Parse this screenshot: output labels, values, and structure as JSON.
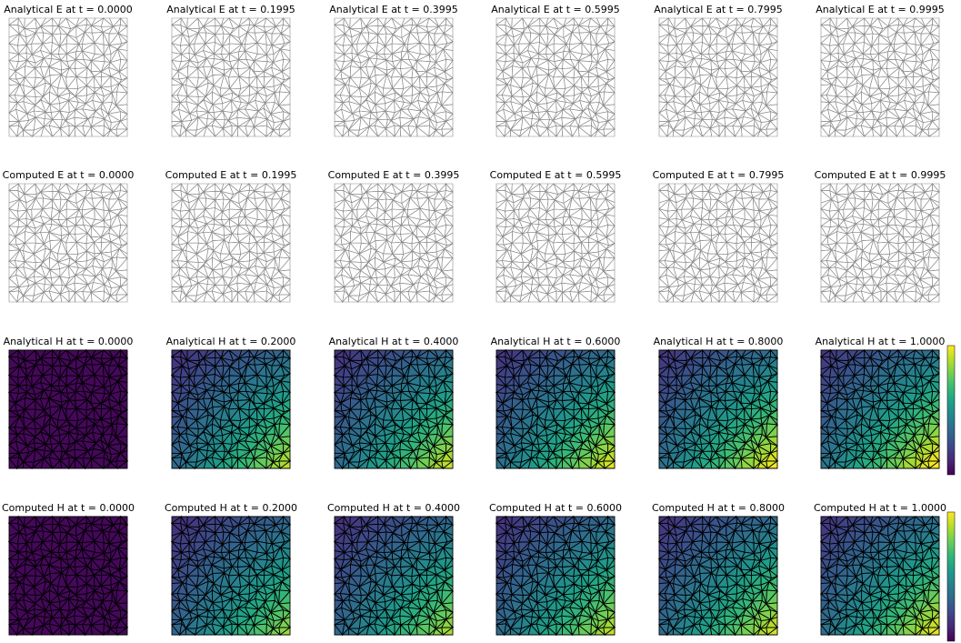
{
  "rows": [
    {
      "titles": [
        "Analytical E at t = 0.0000",
        "Analytical E at t = 0.1995",
        "Analytical E at t = 0.3995",
        "Analytical E at t = 0.5995",
        "Analytical E at t = 0.7995",
        "Analytical E at t = 0.9995"
      ]
    },
    {
      "titles": [
        "Computed E at t = 0.0000",
        "Computed E at t = 0.1995",
        "Computed E at t = 0.3995",
        "Computed E at t = 0.5995",
        "Computed E at t = 0.7995",
        "Computed E at t = 0.9995"
      ]
    },
    {
      "titles": [
        "Analytical H at t = 0.0000",
        "Analytical H at t = 0.2000",
        "Analytical H at t = 0.4000",
        "Analytical H at t = 0.6000",
        "Analytical H at t = 0.8000",
        "Analytical H at t = 1.0000"
      ]
    },
    {
      "titles": [
        "Computed H at t = 0.0000",
        "Computed H at t = 0.2000",
        "Computed H at t = 0.4000",
        "Computed H at t = 0.6000",
        "Computed H at t = 0.8000",
        "Computed H at t = 1.0000"
      ]
    }
  ]
}
